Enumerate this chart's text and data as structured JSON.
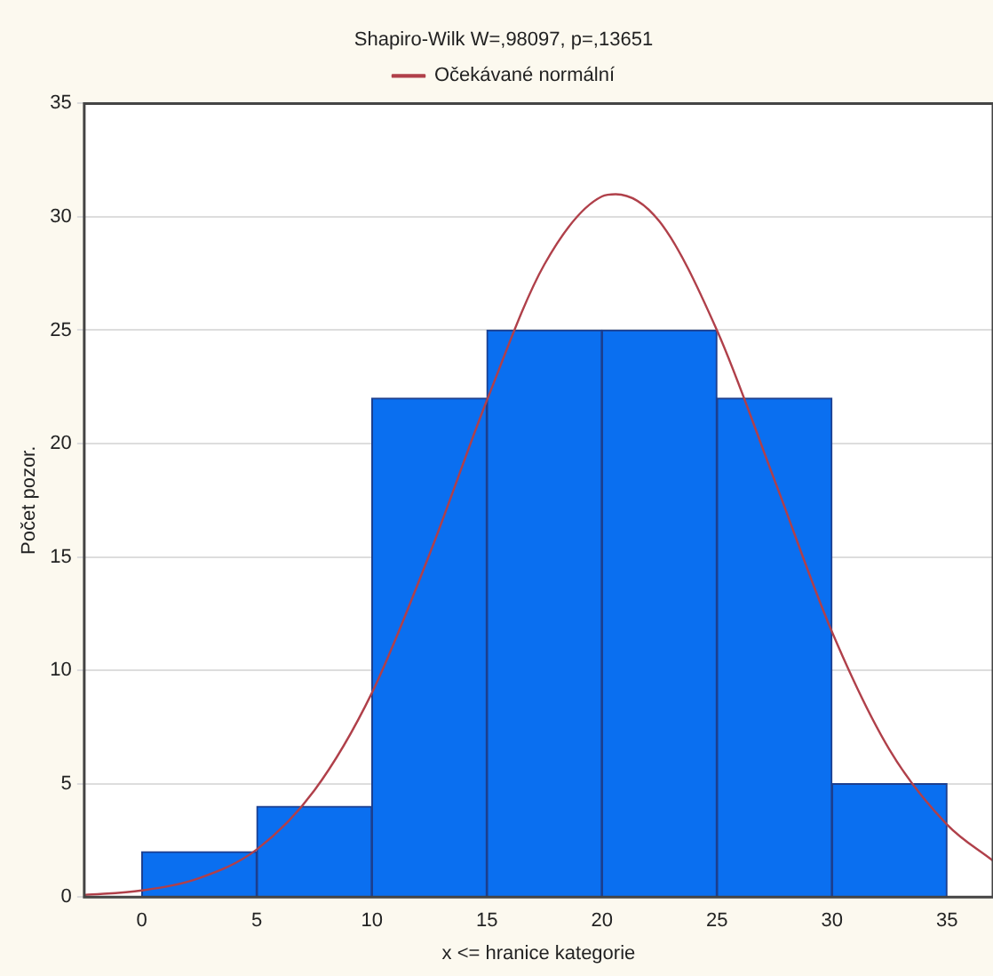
{
  "chart_data": {
    "type": "histogram",
    "title": "Shapiro-Wilk W=,98097, p=,13651",
    "xlabel": "x <= hranice kategorie",
    "ylabel": "Počet pozor.",
    "bins": [
      0,
      5,
      10,
      15,
      20,
      25,
      30,
      35
    ],
    "series": [
      {
        "type": "histogram",
        "color": "#0a6ff0",
        "values": [
          2,
          4,
          22,
          25,
          25,
          22,
          5
        ]
      },
      {
        "type": "line",
        "name": "Očekávané normální",
        "color": "#b0404a",
        "marker": "none",
        "x": [
          -2.5,
          0,
          2.5,
          5,
          7.5,
          10,
          12.5,
          15,
          17.5,
          20,
          20.6,
          22.5,
          25,
          27.5,
          30,
          32.5,
          35,
          37
        ],
        "values": [
          0.09,
          0.29,
          0.84,
          2.1,
          4.7,
          9.0,
          15.1,
          21.9,
          27.9,
          30.9,
          31,
          29.8,
          25.0,
          18.4,
          11.7,
          6.5,
          3.2,
          1.6
        ]
      }
    ],
    "xlim": [
      -2.5,
      37
    ],
    "xticks": [
      0,
      5,
      10,
      15,
      20,
      25,
      30,
      35
    ],
    "ylim": [
      0,
      35
    ],
    "yticks": [
      0,
      5,
      10,
      15,
      20,
      25,
      30,
      35
    ],
    "grid": "y",
    "legend": "top"
  }
}
